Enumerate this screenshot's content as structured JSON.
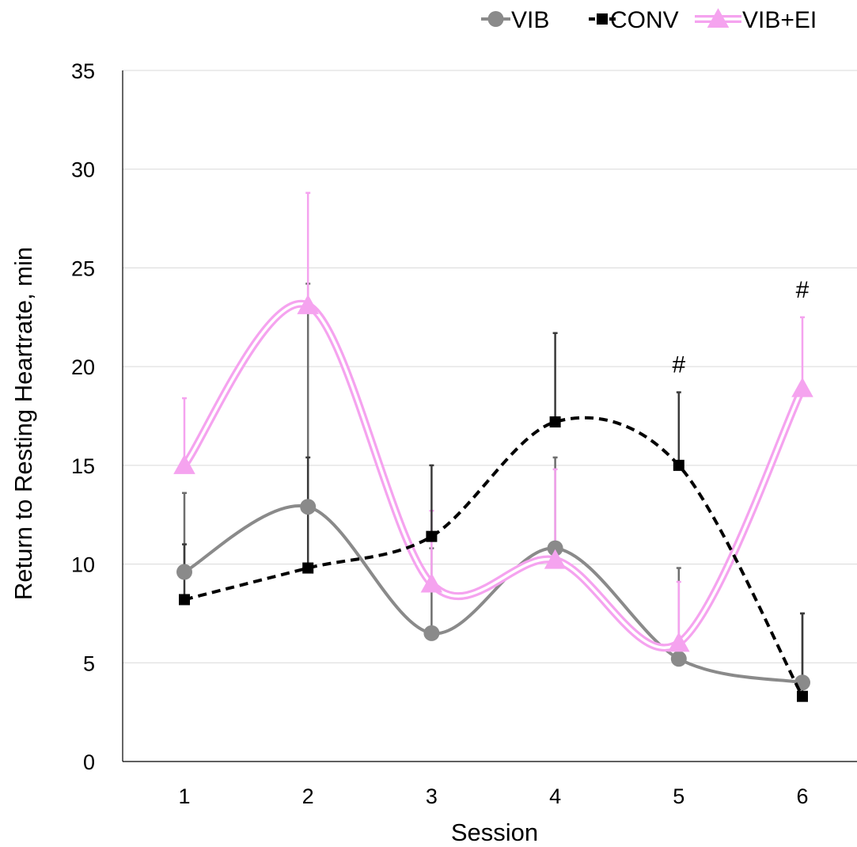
{
  "chart_data": {
    "type": "line",
    "title": "",
    "xlabel": "Session",
    "ylabel": "Return to Resting Heartrate, min",
    "x": [
      1,
      2,
      3,
      4,
      5,
      6
    ],
    "ylim": [
      0,
      35
    ],
    "yticks": [
      0,
      5,
      10,
      15,
      20,
      25,
      30,
      35
    ],
    "grid": "horizontal",
    "legend_position": "top-right",
    "series": [
      {
        "name": "VIB",
        "values": [
          9.6,
          12.9,
          6.5,
          10.8,
          5.2,
          4.0
        ],
        "error_upper": [
          13.6,
          24.2,
          10.8,
          15.4,
          9.8,
          7.5
        ],
        "color": "#8a8a8a",
        "marker": "circle",
        "line_style": "solid"
      },
      {
        "name": "CONV",
        "values": [
          8.2,
          9.8,
          11.4,
          17.2,
          15.0,
          3.3
        ],
        "error_upper": [
          11.0,
          15.4,
          15.0,
          21.7,
          18.7,
          7.5
        ],
        "color": "#000000",
        "marker": "square",
        "line_style": "dashed"
      },
      {
        "name": "VIB+EI",
        "values": [
          15.0,
          23.1,
          9.0,
          10.2,
          6.0,
          18.9
        ],
        "error_upper": [
          18.4,
          28.8,
          12.7,
          14.8,
          9.1,
          22.5
        ],
        "color": "#f5a3ef",
        "marker": "triangle",
        "line_style": "double"
      }
    ],
    "annotations": [
      {
        "x": 5,
        "y": 19.7,
        "text": "#"
      },
      {
        "x": 6,
        "y": 23.5,
        "text": "#"
      }
    ]
  }
}
